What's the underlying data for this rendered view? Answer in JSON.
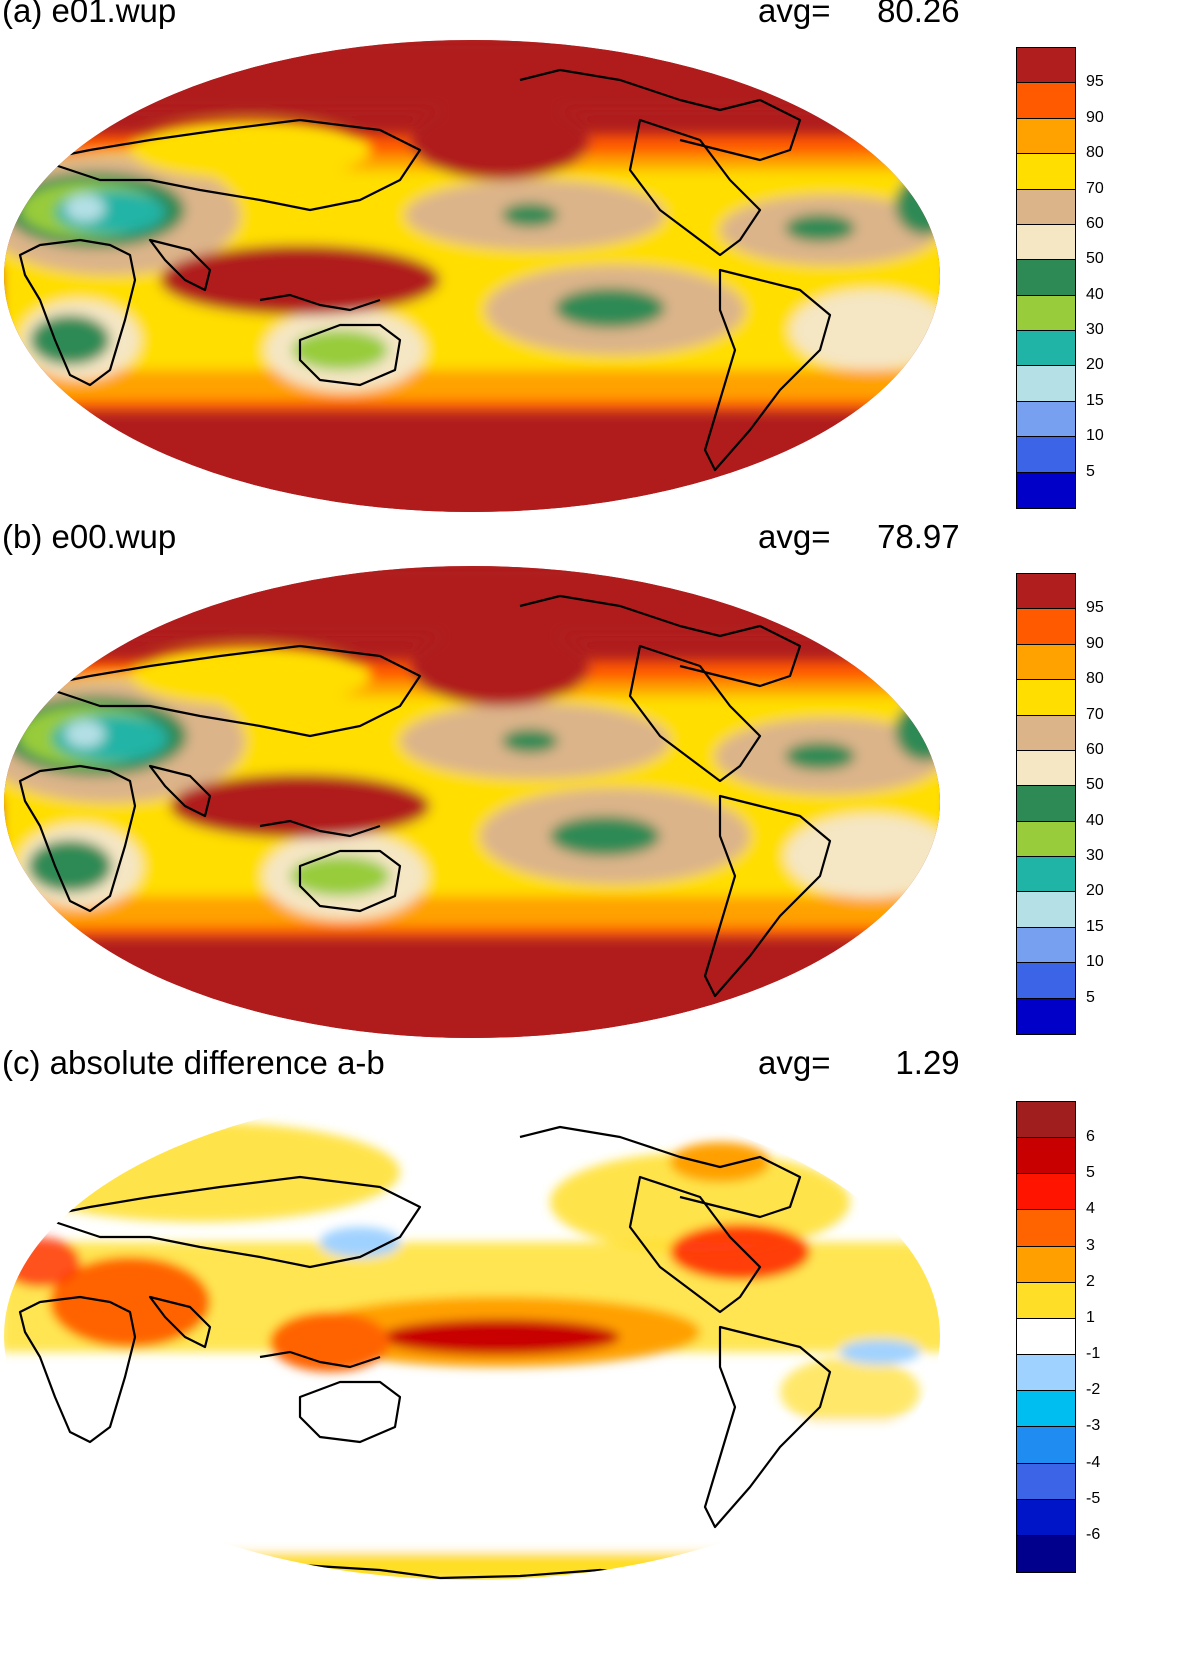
{
  "panels": [
    {
      "title": "(a) e01.wup",
      "avg_label": "avg=",
      "avg_value": "80.26",
      "colorbar": {
        "colors": [
          "#0000c8",
          "#3c64e6",
          "#78a0f0",
          "#b4e0e6",
          "#20b4a6",
          "#98cc3a",
          "#2e8a55",
          "#f5e6c4",
          "#dcb48a",
          "#ffde00",
          "#ffa200",
          "#ff5a00",
          "#b01e1e"
        ],
        "labels": [
          "5",
          "10",
          "15",
          "20",
          "30",
          "40",
          "50",
          "60",
          "70",
          "80",
          "90",
          "95"
        ]
      }
    },
    {
      "title": "(b) e00.wup",
      "avg_label": "avg=",
      "avg_value": "78.97",
      "colorbar": {
        "colors": [
          "#0000c8",
          "#3c64e6",
          "#78a0f0",
          "#b4e0e6",
          "#20b4a6",
          "#98cc3a",
          "#2e8a55",
          "#f5e6c4",
          "#dcb48a",
          "#ffde00",
          "#ffa200",
          "#ff5a00",
          "#b01e1e"
        ],
        "labels": [
          "5",
          "10",
          "15",
          "20",
          "30",
          "40",
          "50",
          "60",
          "70",
          "80",
          "90",
          "95"
        ]
      }
    },
    {
      "title": "(c) absolute difference a-b",
      "avg_label": "avg=",
      "avg_value": "1.29",
      "colorbar": {
        "colors": [
          "#00008c",
          "#0014c8",
          "#3c64e6",
          "#1e8cf0",
          "#00bef0",
          "#a0d2ff",
          "#ffffff",
          "#ffde28",
          "#ffa000",
          "#ff6400",
          "#ff1400",
          "#c80000",
          "#a01e1e"
        ],
        "labels": [
          "-6",
          "-5",
          "-4",
          "-3",
          "-2",
          "-1",
          "1",
          "2",
          "3",
          "4",
          "5",
          "6"
        ]
      }
    }
  ]
}
